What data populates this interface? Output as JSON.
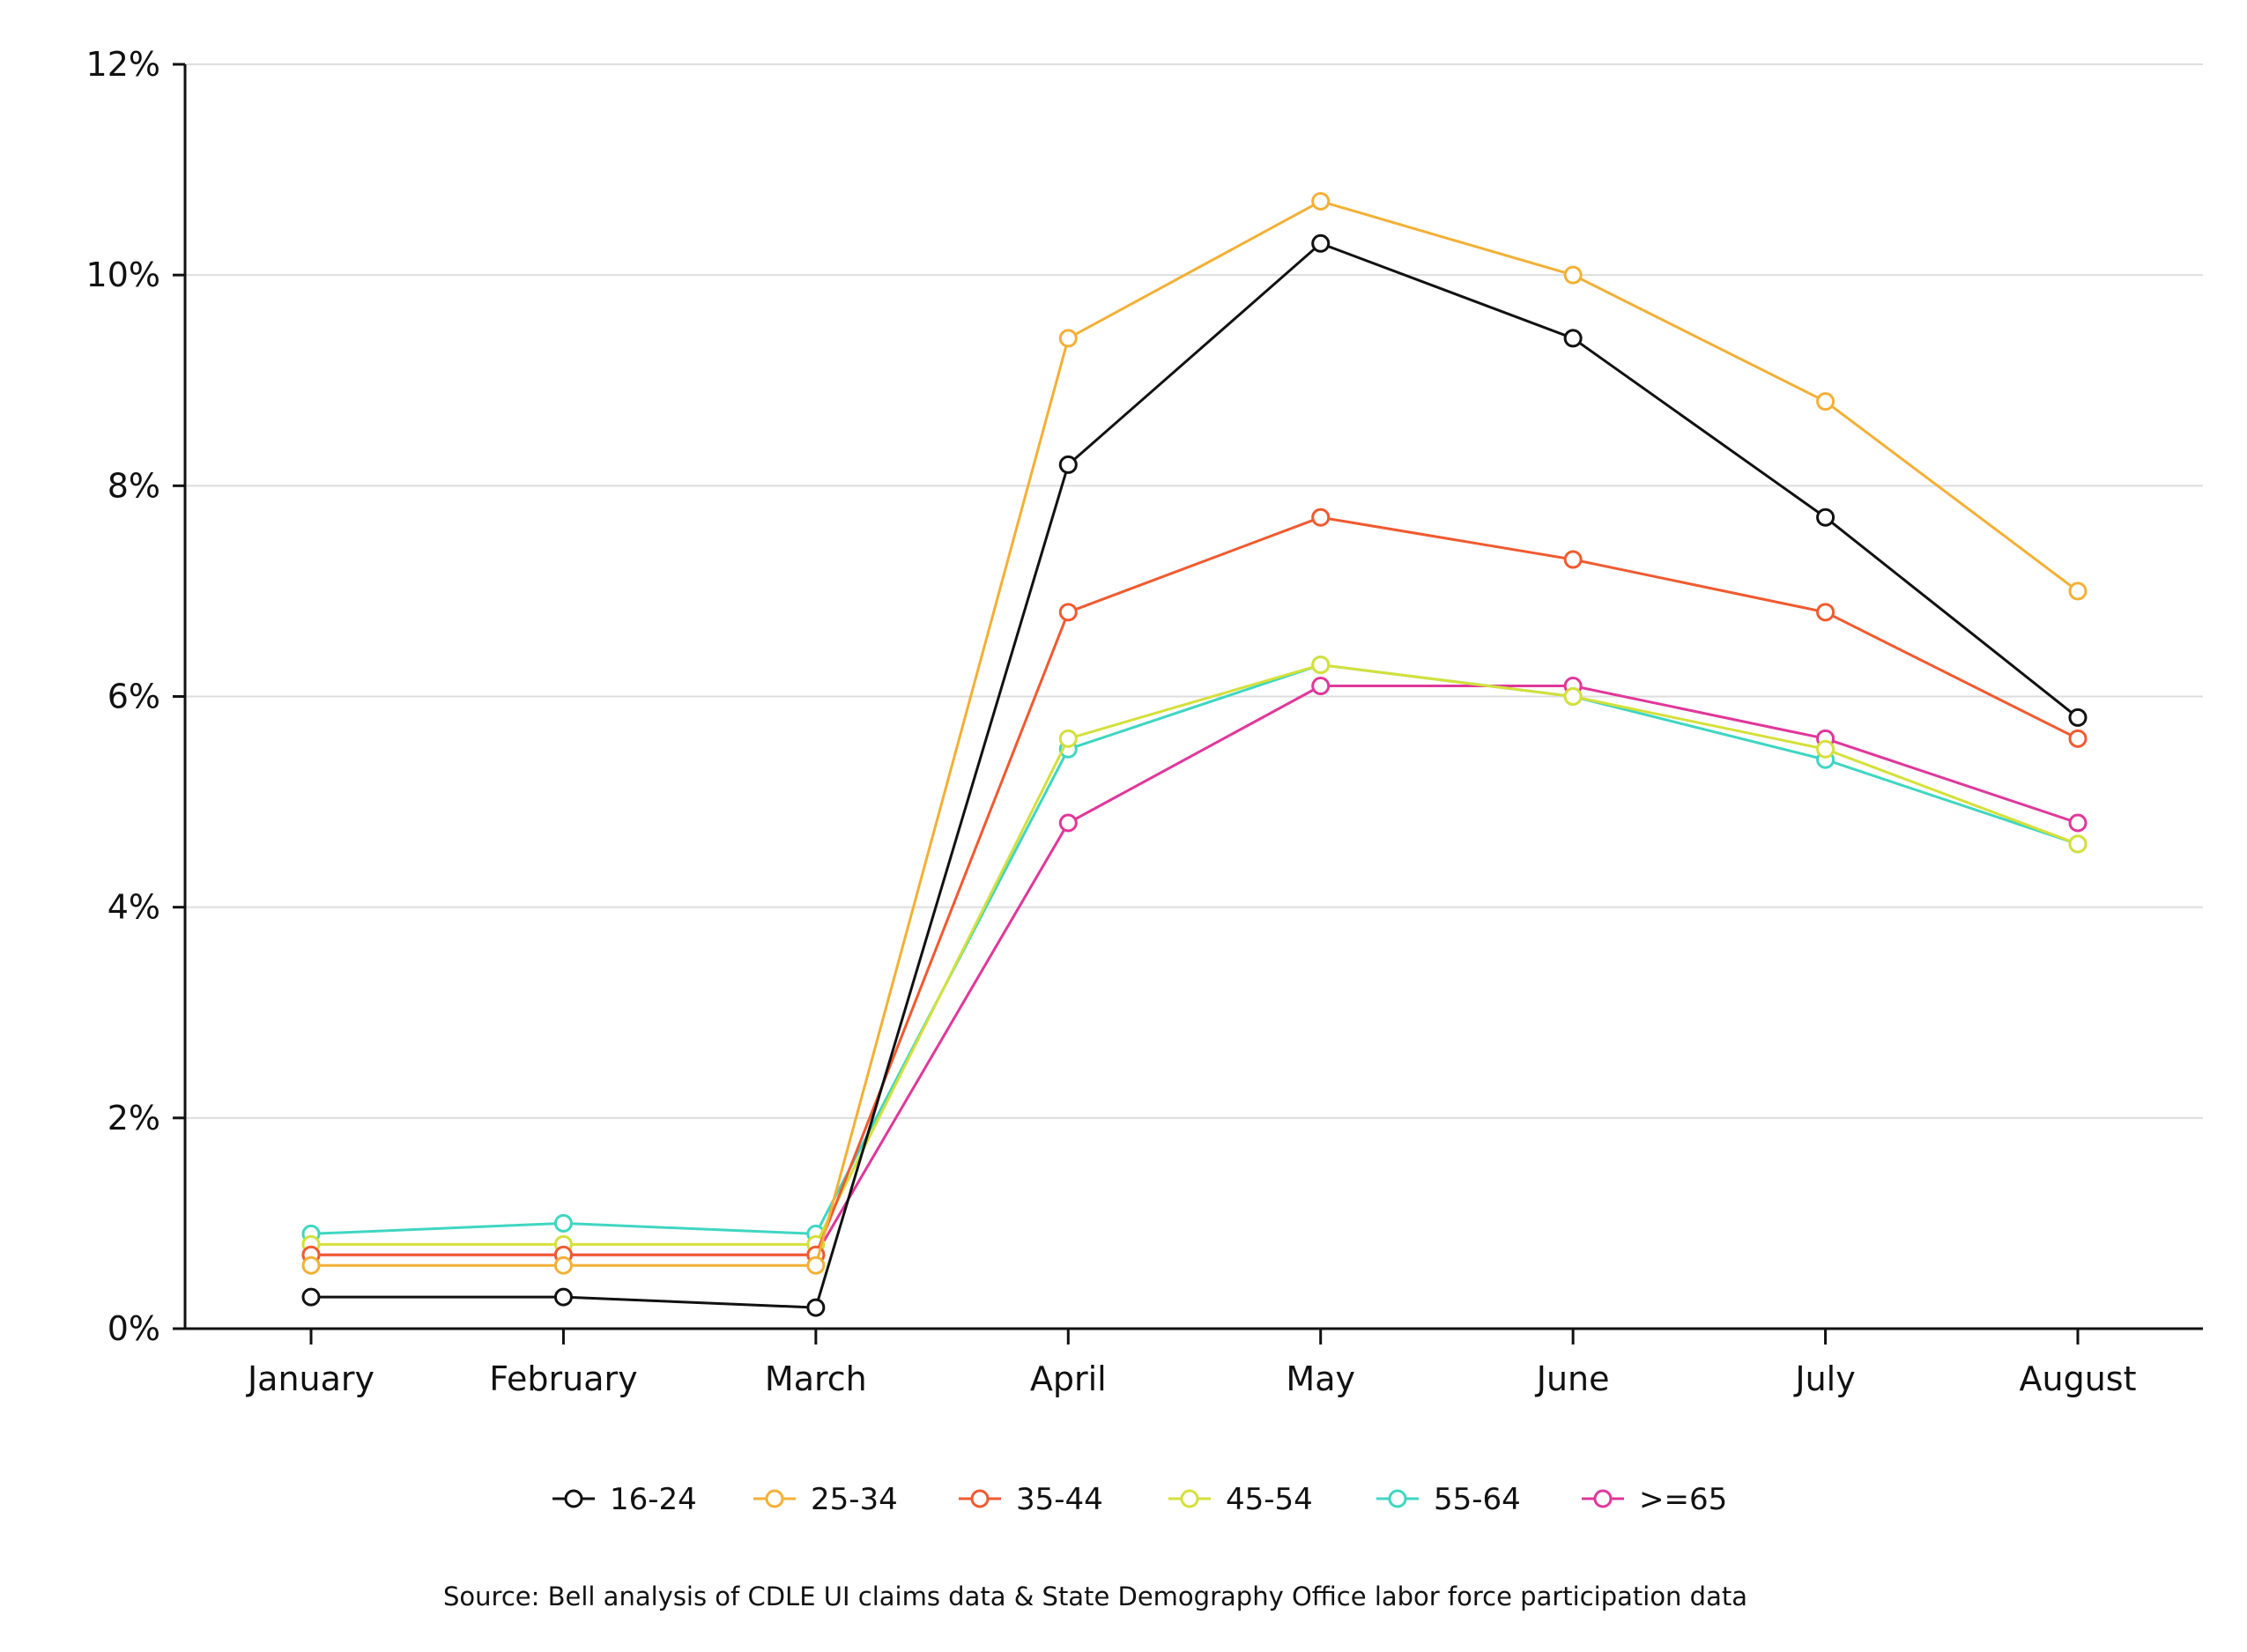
{
  "chart_data": {
    "type": "line",
    "categories": [
      "January",
      "February",
      "March",
      "April",
      "May",
      "June",
      "July",
      "August"
    ],
    "y_ticks": [
      "0%",
      "2%",
      "4%",
      "6%",
      "8%",
      "10%",
      "12%"
    ],
    "ylim": [
      0,
      12
    ],
    "grid": "horizontal",
    "legend_position": "bottom",
    "series": [
      {
        "name": "16-24",
        "color": "#111111",
        "values": [
          0.3,
          0.3,
          0.2,
          8.2,
          10.3,
          9.4,
          7.7,
          5.8
        ]
      },
      {
        "name": "25-34",
        "color": "#f2b035",
        "values": [
          0.6,
          0.6,
          0.6,
          9.4,
          10.7,
          10.0,
          8.8,
          7.0
        ]
      },
      {
        "name": "35-44",
        "color": "#f05a30",
        "values": [
          0.7,
          0.7,
          0.7,
          6.8,
          7.7,
          7.3,
          6.8,
          5.6
        ]
      },
      {
        "name": "45-54",
        "color": "#d4e03a",
        "values": [
          0.8,
          0.8,
          0.8,
          5.6,
          6.3,
          6.0,
          5.5,
          4.6
        ]
      },
      {
        "name": "55-64",
        "color": "#3fd6c2",
        "values": [
          0.9,
          1.0,
          0.9,
          5.5,
          6.3,
          6.0,
          5.4,
          4.6
        ]
      },
      {
        "name": ">=65",
        "color": "#e0379a",
        "values": [
          0.7,
          0.7,
          0.7,
          4.8,
          6.1,
          6.1,
          5.6,
          4.8
        ]
      }
    ],
    "source": "Source: Bell analysis of CDLE UI claims data & State Demography Office labor force participation data"
  }
}
